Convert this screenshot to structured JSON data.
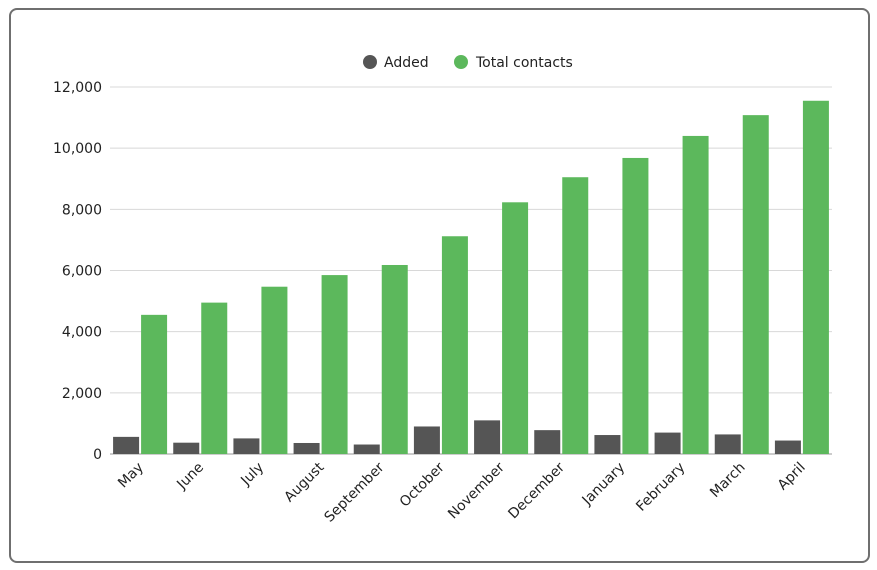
{
  "chart_data": {
    "type": "bar",
    "categories": [
      "May",
      "June",
      "July",
      "August",
      "September",
      "October",
      "November",
      "December",
      "January",
      "February",
      "March",
      "April"
    ],
    "series": [
      {
        "name": "Added",
        "color": "#555555",
        "values": [
          560,
          370,
          510,
          360,
          310,
          900,
          1100,
          780,
          620,
          700,
          640,
          440
        ]
      },
      {
        "name": "Total contacts",
        "color": "#5cb85c",
        "values": [
          4550,
          4950,
          5470,
          5850,
          6180,
          7120,
          8230,
          9050,
          9680,
          10400,
          11080,
          11550
        ]
      }
    ],
    "yticks": [
      "0",
      "2,000",
      "4,000",
      "6,000",
      "8,000",
      "10,000",
      "12,000"
    ],
    "ylim": [
      0,
      12000
    ],
    "grid": true,
    "legend_position": "top-center"
  }
}
